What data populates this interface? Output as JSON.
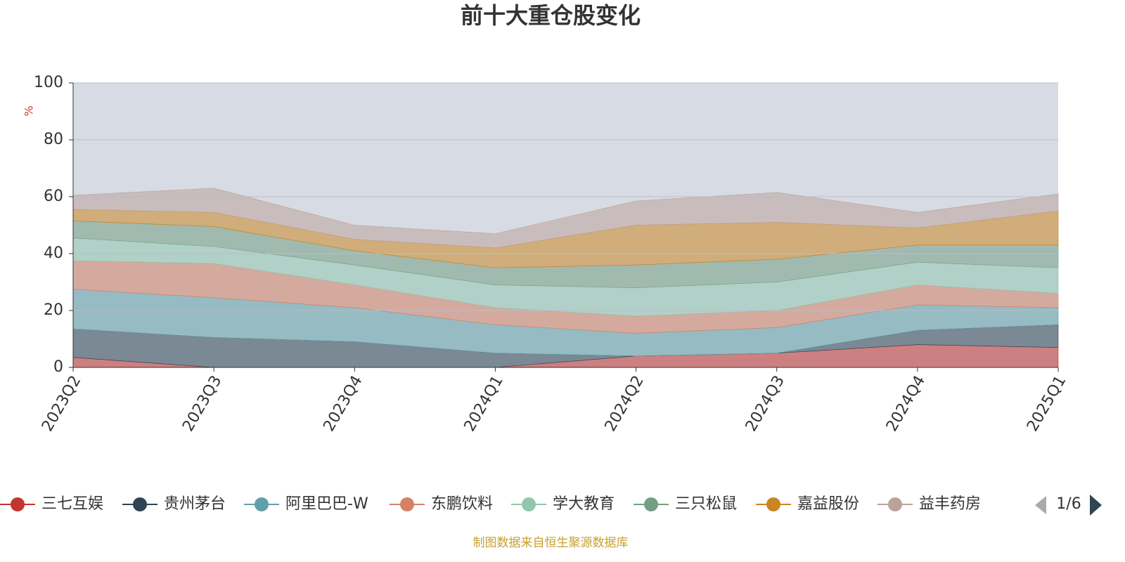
{
  "chart_data": {
    "type": "stacked_area",
    "title": "前十大重仓股变化",
    "y_label": "%",
    "categories": [
      "2023Q2",
      "2023Q3",
      "2023Q4",
      "2024Q1",
      "2024Q2",
      "2024Q3",
      "2024Q4",
      "2025Q1"
    ],
    "series": [
      {
        "name": "三七互娱",
        "color": "#c23531",
        "values": [
          3.5,
          0,
          0,
          0,
          4,
          5,
          8,
          7
        ]
      },
      {
        "name": "贵州茅台",
        "color": "#2f4554",
        "values": [
          10,
          10.5,
          9,
          5,
          0,
          0,
          5,
          8
        ]
      },
      {
        "name": "阿里巴巴-W",
        "color": "#61a0a8",
        "values": [
          14,
          14,
          12,
          10,
          8,
          9,
          9,
          6
        ]
      },
      {
        "name": "东鹏饮料",
        "color": "#d48265",
        "values": [
          10,
          12,
          8,
          6,
          6,
          6,
          7,
          5
        ]
      },
      {
        "name": "学大教育",
        "color": "#91c7ae",
        "values": [
          8,
          6,
          7,
          8,
          10,
          10,
          8,
          9
        ]
      },
      {
        "name": "三只松鼠",
        "color": "#749f83",
        "values": [
          6,
          7,
          5,
          6,
          8,
          8,
          6,
          8
        ]
      },
      {
        "name": "嘉益股份",
        "color": "#ca8622",
        "values": [
          4,
          5,
          4,
          7,
          14,
          13,
          6,
          12
        ]
      },
      {
        "name": "益丰药房",
        "color": "#bda29a",
        "values": [
          5,
          8.5,
          5,
          5,
          8.5,
          10.5,
          5.5,
          6
        ]
      }
    ],
    "ylim": [
      0,
      100
    ],
    "yticks": [
      0,
      20,
      40,
      60,
      80,
      100
    ],
    "grid": true,
    "legend_page": "1/6",
    "source": "制图数据来自恒生聚源数据库"
  }
}
